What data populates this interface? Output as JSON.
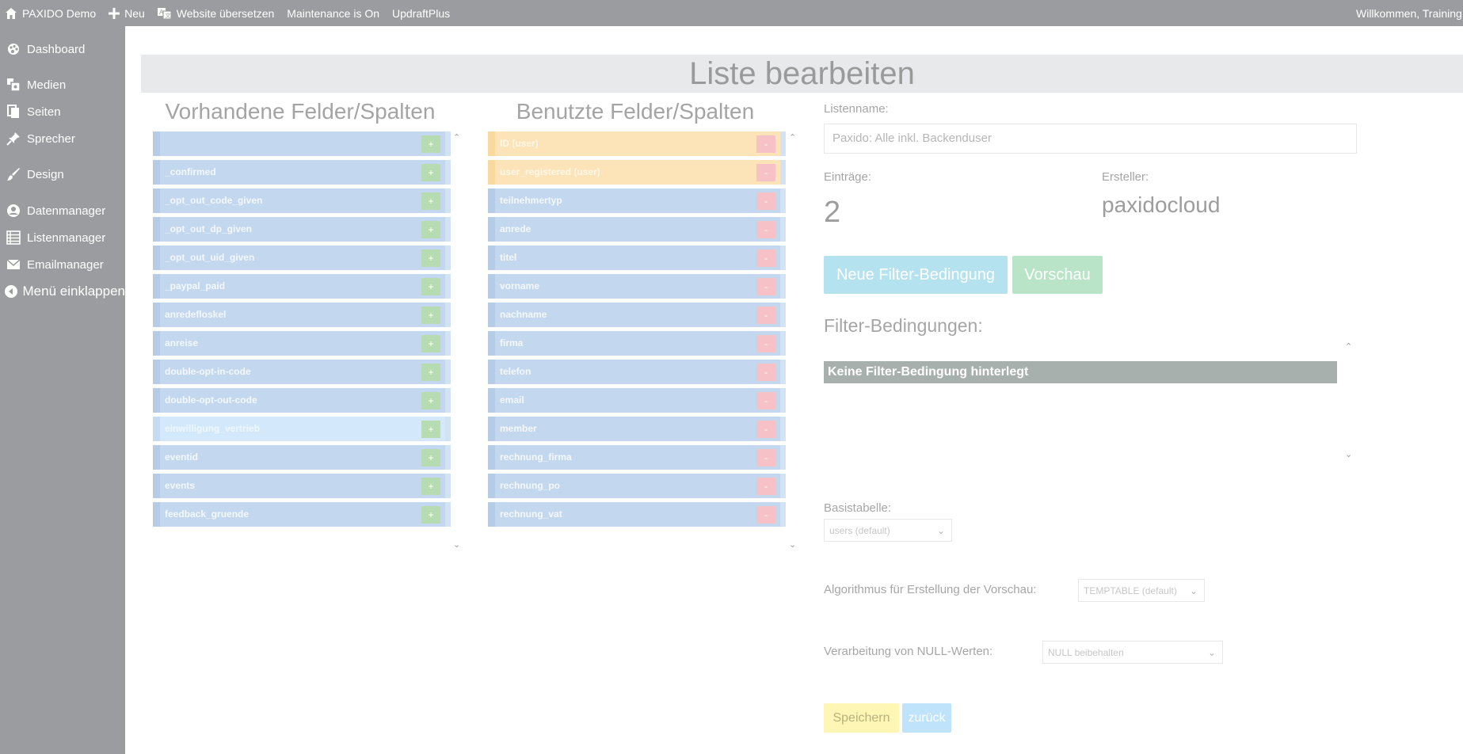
{
  "adminbar": {
    "site_name": "PAXIDO Demo",
    "new_label": "Neu",
    "translate_label": "Website übersetzen",
    "maintenance_label": "Maintenance is On",
    "updraft_label": "UpdraftPlus",
    "welcome_label": "Willkommen, Training U"
  },
  "sidebar": {
    "items": [
      {
        "label": "Dashboard",
        "icon": "palette-icon"
      },
      {
        "label": "Medien",
        "icon": "media-icon"
      },
      {
        "label": "Seiten",
        "icon": "pages-icon"
      },
      {
        "label": "Sprecher",
        "icon": "pin-icon"
      },
      {
        "label": "Design",
        "icon": "brush-icon"
      },
      {
        "label": "Datenmanager",
        "icon": "data-icon"
      },
      {
        "label": "Listenmanager",
        "icon": "list-icon"
      },
      {
        "label": "Emailmanager",
        "icon": "mail-icon"
      },
      {
        "label": "Menü einklappen",
        "icon": "collapse-icon"
      }
    ]
  },
  "page": {
    "title": "Liste bearbeiten"
  },
  "available": {
    "heading": "Vorhandene Felder/Spalten",
    "fields": [
      "",
      "_confirmed",
      "_opt_out_code_given",
      "_opt_out_dp_given",
      "_opt_out_uid_given",
      "_paypal_paid",
      "anredefloskel",
      "anreise",
      "double-opt-in-code",
      "double-opt-out-code",
      "einwilligung_vertrieb",
      "eventid",
      "events",
      "feedback_gruende"
    ],
    "add_symbol": "+"
  },
  "used": {
    "heading": "Benutzte Felder/Spalten",
    "fields": [
      "ID (user)",
      "user_registered (user)",
      "teilnehmertyp",
      "anrede",
      "titel",
      "vorname",
      "nachname",
      "firma",
      "telefon",
      "email",
      "member",
      "rechnung_firma",
      "rechnung_po",
      "rechnung_vat"
    ],
    "remove_symbol": "-"
  },
  "form": {
    "listname_label": "Listenname:",
    "listname_value": "Paxido: Alle inkl. Backenduser",
    "entries_label": "Einträge:",
    "entries_value": "2",
    "creator_label": "Ersteller:",
    "creator_value": "paxidocloud",
    "new_filter_button": "Neue Filter-Bedingung",
    "preview_button": "Vorschau",
    "filter_heading": "Filter-Bedingungen:",
    "filter_empty": "Keine Filter-Bedingung hinterlegt",
    "basetable_label": "Basistabelle:",
    "basetable_value": "users (default)",
    "algorithm_label": "Algorithmus für Erstellung der Vorschau:",
    "algorithm_value": "TEMPTABLE (default)",
    "null_label": "Verarbeitung von NULL-Werten:",
    "null_value": "NULL beibehalten",
    "save_button": "Speichern",
    "back_button": "zurück"
  },
  "colors": {
    "bar": "#9a9c9f",
    "field_blue": "#c3d8ee",
    "field_orange": "#fde4b8",
    "btn_cyan": "#b4e2ee",
    "btn_green": "#b9e4c7",
    "btn_yellow": "#fdf6b5",
    "btn_blue": "#bfe3fb"
  }
}
